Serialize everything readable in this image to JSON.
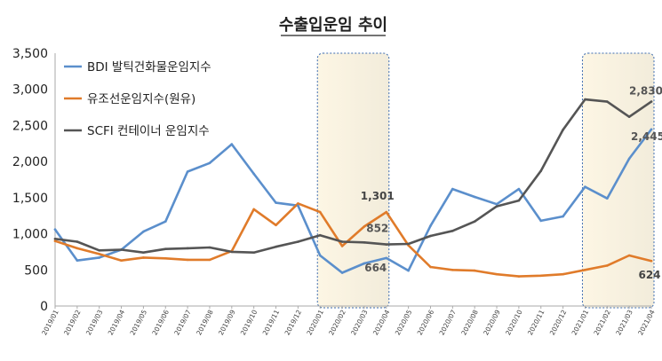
{
  "chart_data": {
    "type": "line",
    "title": "수출입운임 추이",
    "ylim": [
      0,
      3500
    ],
    "yticks": [
      "0",
      "500",
      "1,000",
      "1,500",
      "2,000",
      "2,500",
      "3,000",
      "3,500"
    ],
    "categories": [
      "2019/01",
      "2019/02",
      "2019/03",
      "2019/04",
      "2019/05",
      "2019/06",
      "2019/07",
      "2019/08",
      "2019/09",
      "2019/10",
      "2019/11",
      "2019/12",
      "2020/01",
      "2020/02",
      "2020/03",
      "2020/04",
      "2020/05",
      "2020/06",
      "2020/07",
      "2020/08",
      "2020/09",
      "2020/10",
      "2020/11",
      "2020/12",
      "2021/01",
      "2021/02",
      "2021/03",
      "2021/04"
    ],
    "series": [
      {
        "name": "BDI 발틱건화물운임지수",
        "color": "#5b8fcc",
        "values": [
          1060,
          630,
          670,
          780,
          1030,
          1170,
          1860,
          1980,
          2240,
          1830,
          1430,
          1390,
          700,
          460,
          590,
          664,
          490,
          1110,
          1620,
          1510,
          1410,
          1620,
          1180,
          1240,
          1650,
          1490,
          2040,
          2445
        ]
      },
      {
        "name": "유조선운임지수(원유)",
        "color": "#e07b2a",
        "values": [
          900,
          800,
          720,
          630,
          670,
          660,
          640,
          640,
          760,
          1340,
          1120,
          1420,
          1301,
          830,
          1100,
          1301,
          840,
          540,
          500,
          490,
          440,
          410,
          420,
          440,
          500,
          560,
          700,
          624
        ]
      },
      {
        "name": "SCFI 컨테이너 운임지수",
        "color": "#555555",
        "values": [
          930,
          890,
          770,
          780,
          740,
          790,
          800,
          810,
          750,
          740,
          820,
          890,
          980,
          890,
          880,
          852,
          860,
          970,
          1040,
          1170,
          1380,
          1460,
          1870,
          2440,
          2860,
          2830,
          2620,
          2830
        ]
      }
    ],
    "data_labels": [
      {
        "text": "1,301",
        "series": 1,
        "index": 15
      },
      {
        "text": "852",
        "series": 2,
        "index": 15
      },
      {
        "text": "664",
        "series": 0,
        "index": 15
      },
      {
        "text": "2,830",
        "series": 2,
        "index": 27
      },
      {
        "text": "2,445",
        "series": 0,
        "index": 27
      },
      {
        "text": "624",
        "series": 1,
        "index": 27
      }
    ],
    "highlight_ranges": [
      {
        "from": "2020/01",
        "to": "2020/04"
      },
      {
        "from": "2021/01",
        "to": "2021/04"
      }
    ],
    "legend_position": "top-left",
    "grid": false
  }
}
